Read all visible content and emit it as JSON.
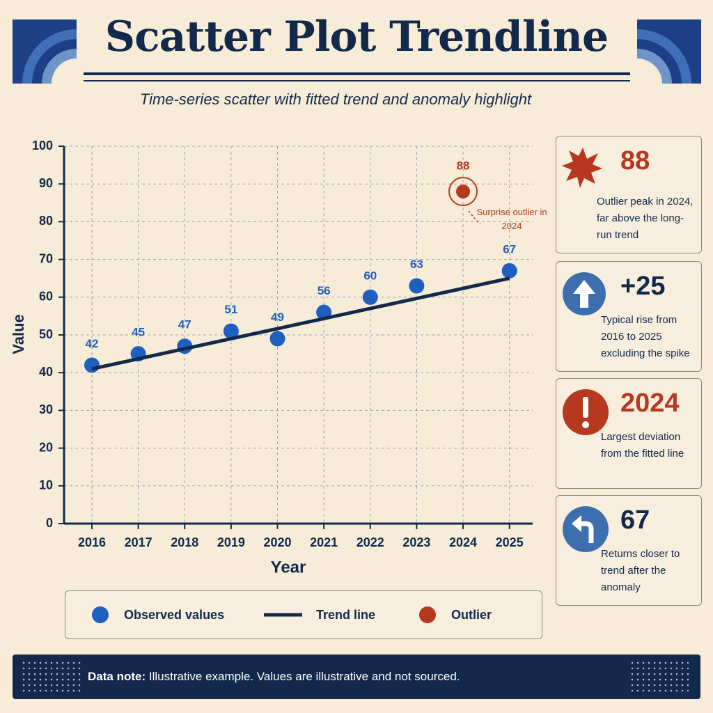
{
  "chart_data": {
    "type": "scatter",
    "title": "Scatter Plot Trendline",
    "subtitle": "Time-series scatter with fitted trend and anomaly highlight",
    "x_label": "Year",
    "y_label": "Value",
    "xlim": [
      2015.4,
      2025.5
    ],
    "xticks": [
      2016,
      2017,
      2018,
      2019,
      2020,
      2021,
      2022,
      2023,
      2024,
      2025
    ],
    "ylim": [
      0,
      100
    ],
    "yticks": [
      0,
      10,
      20,
      30,
      40,
      50,
      60,
      70,
      80,
      90,
      100
    ],
    "grid": true,
    "series": [
      {
        "name": "Observed values",
        "color": "#1f5fbf",
        "mark": "point",
        "x": [
          2016,
          2017,
          2018,
          2019,
          2020,
          2021,
          2022,
          2023,
          2025
        ],
        "values": [
          42,
          45,
          47,
          51,
          49,
          56,
          60,
          63,
          67
        ]
      },
      {
        "name": "Trend line",
        "color": "#13294b",
        "mark": "line",
        "x": [
          2016,
          2025
        ],
        "values": [
          41,
          65
        ]
      },
      {
        "name": "Outlier",
        "color": "#b5381f",
        "mark": "point",
        "x": [
          2024
        ],
        "values": [
          88
        ]
      }
    ],
    "annotation": "Surprise outlier in 2024"
  },
  "cards": [
    {
      "value": 88,
      "text": "Outlier peak in 2024, far above the long-run trend"
    },
    {
      "value": "+25",
      "text": "Typical rise from 2016 to 2025 excluding the spike"
    },
    {
      "value": 2024,
      "text": "Largest deviation from the fitted line"
    },
    {
      "value": 67,
      "text": "Returns closer to trend after the anomaly"
    }
  ],
  "note": {
    "label": "Data note:",
    "text": "Illustrative example. Values are illustrative and not sourced."
  }
}
